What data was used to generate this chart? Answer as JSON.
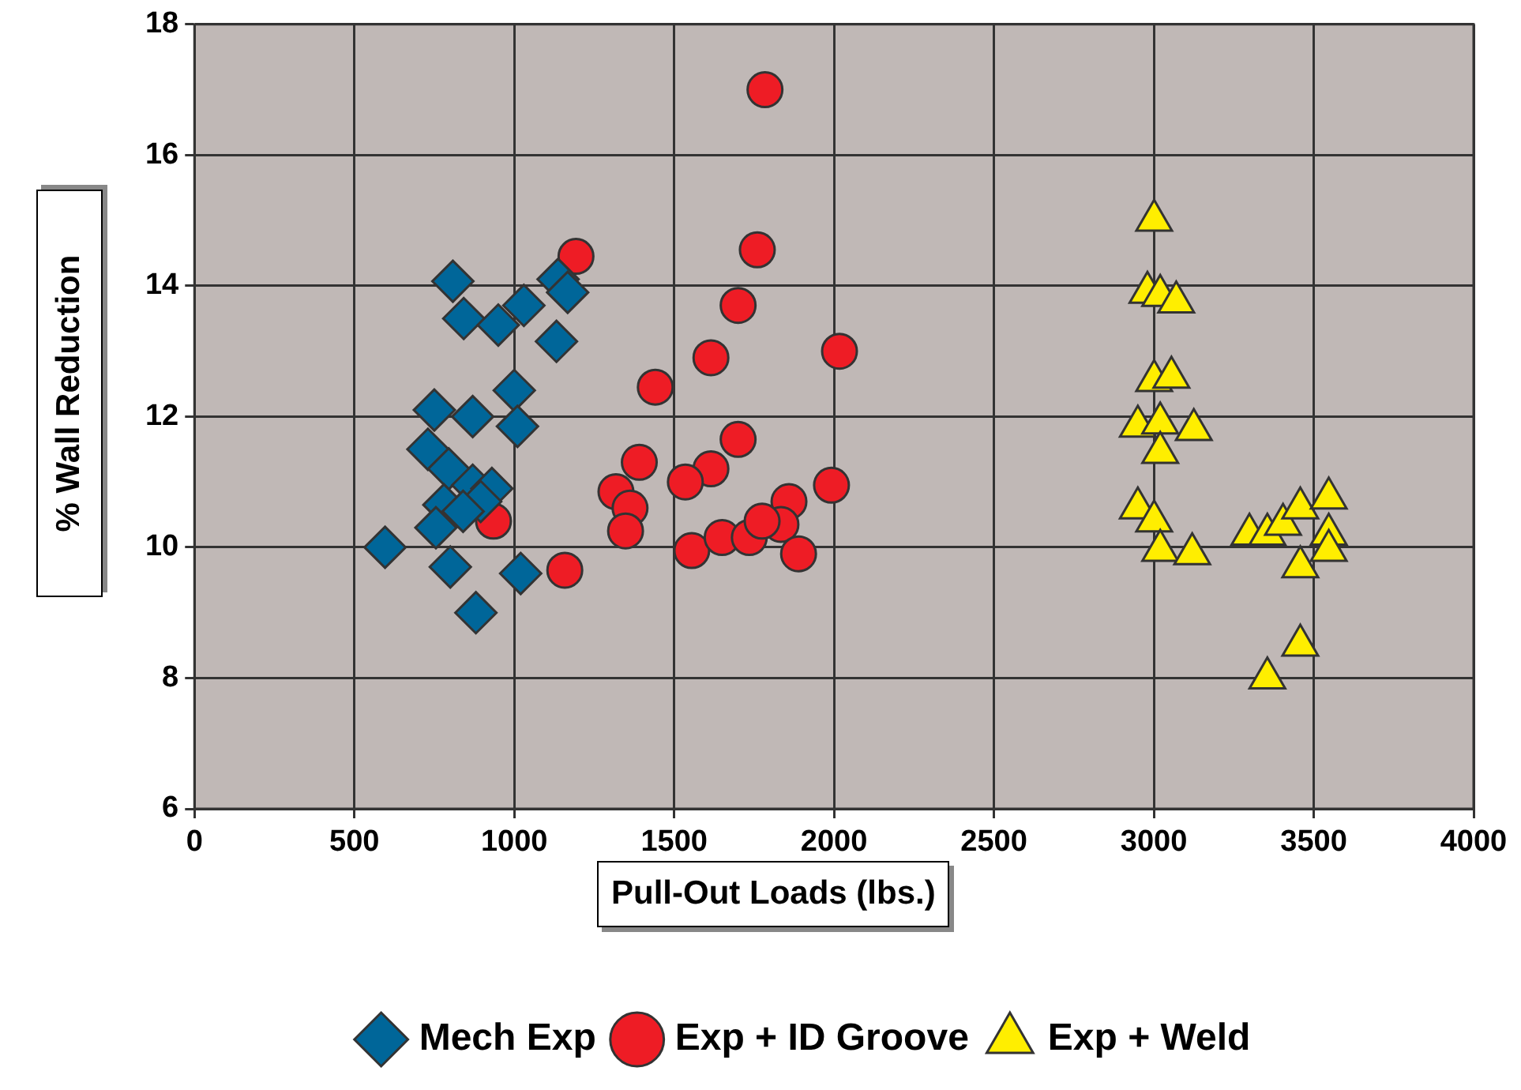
{
  "chart_data": {
    "type": "scatter",
    "xlabel": "Pull-Out Loads (lbs.)",
    "ylabel": "% Wall Reduction",
    "xlim": [
      0,
      4000
    ],
    "xticks": [
      0,
      500,
      1000,
      1500,
      2000,
      2500,
      3000,
      3500,
      4000
    ],
    "ylim": [
      6,
      18
    ],
    "yticks": [
      6,
      8,
      10,
      12,
      14,
      16,
      18
    ],
    "grid": true,
    "legend": "bottom",
    "series": [
      {
        "name": "Mech Exp",
        "color": "#006699",
        "marker": "diamond",
        "x": [
          596,
          808,
          842,
          950,
          1030,
          1137,
          1167,
          1132,
          750,
          870,
          1000,
          1010,
          730,
          795,
          870,
          930,
          780,
          755,
          800,
          1020,
          880,
          895,
          840
        ],
        "values": [
          10.0,
          14.07,
          13.5,
          13.4,
          13.7,
          14.1,
          13.9,
          13.15,
          12.1,
          12.0,
          12.4,
          11.85,
          11.5,
          11.2,
          10.95,
          10.9,
          10.65,
          10.3,
          9.7,
          9.6,
          9.0,
          10.7,
          10.55
        ]
      },
      {
        "name": "Exp + ID Groove",
        "color": "#ee1c25",
        "marker": "circle",
        "x": [
          1784,
          1193,
          1760,
          1700,
          1615,
          2017,
          1441,
          1700,
          1391,
          1615,
          1535,
          1992,
          1318,
          1362,
          1348,
          935,
          1158,
          1555,
          1650,
          1859,
          1834,
          1735,
          1889,
          1775
        ],
        "values": [
          17.0,
          14.45,
          14.55,
          13.7,
          12.9,
          13.0,
          12.45,
          11.65,
          11.3,
          11.2,
          11.0,
          10.95,
          10.85,
          10.6,
          10.25,
          10.4,
          9.65,
          9.95,
          10.15,
          10.7,
          10.35,
          10.15,
          9.9,
          10.4
        ]
      },
      {
        "name": "Exp + Weld",
        "color": "#ffee00",
        "marker": "triangle",
        "x": [
          3001,
          2980,
          3020,
          3070,
          3001,
          3055,
          2950,
          3020,
          3125,
          3020,
          2950,
          3001,
          3020,
          3120,
          3299,
          3355,
          3404,
          3458,
          3547,
          3547,
          3547,
          3458,
          3458,
          3355
        ],
        "values": [
          15.0,
          13.9,
          13.85,
          13.75,
          12.55,
          12.6,
          11.85,
          11.9,
          11.8,
          11.45,
          10.6,
          10.4,
          9.95,
          9.9,
          10.2,
          10.2,
          10.35,
          10.6,
          10.75,
          10.2,
          9.95,
          9.7,
          8.5,
          8.0
        ]
      }
    ]
  }
}
